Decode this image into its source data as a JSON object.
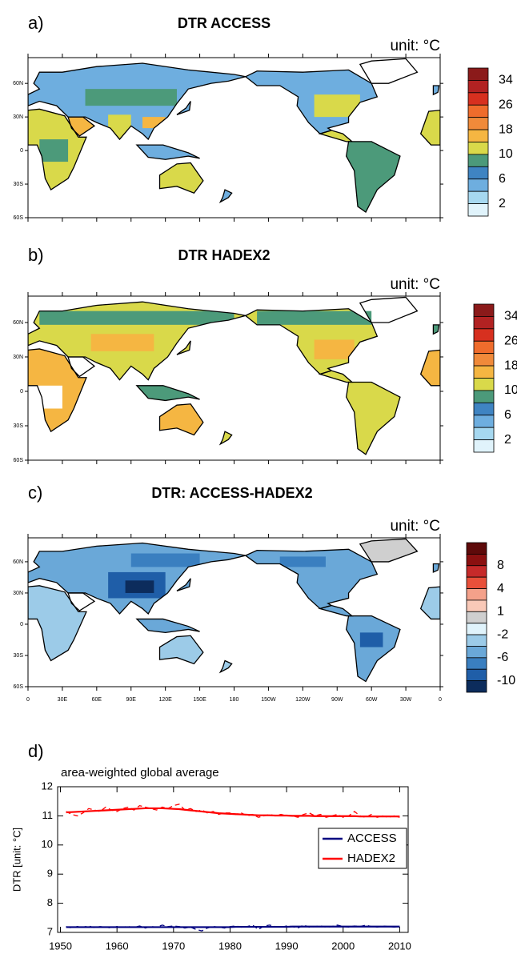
{
  "chart_data": [
    {
      "type": "map",
      "label": "a)",
      "title": "DTR ACCESS",
      "unit": "unit: °C",
      "lat_labels": [
        "60N",
        "30N",
        "0",
        "30S",
        "60S"
      ],
      "colorbar": {
        "colors": [
          "#8b1a1a",
          "#b22222",
          "#d7301f",
          "#ef6c2c",
          "#f08a3a",
          "#f5b642",
          "#d9d94a",
          "#4c9a7a",
          "#3f84c2",
          "#6eaedf",
          "#a6d8f0",
          "#e0f3fb"
        ],
        "labels": [
          34,
          26,
          18,
          10,
          6,
          2
        ]
      }
    },
    {
      "type": "map",
      "label": "b)",
      "title": "DTR HADEX2",
      "unit": "unit: °C",
      "lat_labels": [
        "60N",
        "30N",
        "0",
        "30S",
        "60S"
      ],
      "colorbar": {
        "colors": [
          "#8b1a1a",
          "#b22222",
          "#d7301f",
          "#ef6c2c",
          "#f08a3a",
          "#f5b642",
          "#d9d94a",
          "#4c9a7a",
          "#3f84c2",
          "#6eaedf",
          "#a6d8f0",
          "#e0f3fb"
        ],
        "labels": [
          34,
          26,
          18,
          10,
          6,
          2
        ]
      }
    },
    {
      "type": "map",
      "label": "c)",
      "title": "DTR: ACCESS-HADEX2",
      "unit": "unit: °C",
      "lat_labels": [
        "60N",
        "30N",
        "0",
        "30S",
        "60S"
      ],
      "lon_labels": [
        "0",
        "30E",
        "60E",
        "90E",
        "120E",
        "150E",
        "180",
        "150W",
        "120W",
        "90W",
        "60W",
        "30W",
        "0"
      ],
      "colorbar": {
        "colors": [
          "#5e0a0a",
          "#8b1010",
          "#c62a2a",
          "#e8503a",
          "#f4a18a",
          "#f9c9b8",
          "#cfcfcf",
          "#e0f3fb",
          "#9ccbe8",
          "#6aa8d8",
          "#3a7fc0",
          "#1f5ea8",
          "#0c2c5c"
        ],
        "labels": [
          8,
          4,
          1,
          -2,
          -6,
          -10
        ]
      }
    },
    {
      "type": "line",
      "label": "d)",
      "subtitle": "area-weighted global average",
      "ylabel": "DTR [unit: °C]",
      "x": [
        1951,
        1952,
        1953,
        1954,
        1955,
        1956,
        1957,
        1958,
        1959,
        1960,
        1961,
        1962,
        1963,
        1964,
        1965,
        1966,
        1967,
        1968,
        1969,
        1970,
        1971,
        1972,
        1973,
        1974,
        1975,
        1976,
        1977,
        1978,
        1979,
        1980,
        1981,
        1982,
        1983,
        1984,
        1985,
        1986,
        1987,
        1988,
        1989,
        1990,
        1991,
        1992,
        1993,
        1994,
        1995,
        1996,
        1997,
        1998,
        1999,
        2000,
        2001,
        2002,
        2003,
        2004,
        2005,
        2006,
        2007,
        2008,
        2009,
        2010
      ],
      "xlim": [
        1949.5,
        2011.5
      ],
      "xticks": [
        1950,
        1960,
        1970,
        1980,
        1990,
        2000,
        2010
      ],
      "ylim": [
        7,
        12
      ],
      "yticks": [
        7,
        8,
        9,
        10,
        11,
        12
      ],
      "legend": "upper right",
      "series": [
        {
          "name": "ACCESS",
          "color": "#000080",
          "values": [
            7.2,
            7.15,
            7.2,
            7.18,
            7.22,
            7.16,
            7.2,
            7.18,
            7.15,
            7.2,
            7.18,
            7.2,
            7.17,
            7.22,
            7.15,
            7.2,
            7.18,
            7.25,
            7.2,
            7.22,
            7.2,
            7.15,
            7.18,
            7.1,
            7.05,
            7.15,
            7.2,
            7.18,
            7.15,
            7.2,
            7.22,
            7.18,
            7.2,
            7.25,
            7.1,
            7.22,
            7.25,
            7.2,
            7.18,
            7.22,
            7.2,
            7.15,
            7.25,
            7.18,
            7.2,
            7.22,
            7.18,
            7.2,
            7.25,
            7.2,
            7.18,
            7.22,
            7.2,
            7.25,
            7.2,
            7.18,
            7.22,
            7.2,
            7.18,
            7.2
          ],
          "smoothed": [
            7.18,
            7.18,
            7.18,
            7.18,
            7.18,
            7.18,
            7.18,
            7.18,
            7.18,
            7.18,
            7.18,
            7.18,
            7.18,
            7.18,
            7.18,
            7.18,
            7.18,
            7.18,
            7.18,
            7.18,
            7.18,
            7.18,
            7.18,
            7.18,
            7.18,
            7.18,
            7.18,
            7.18,
            7.18,
            7.18,
            7.19,
            7.19,
            7.19,
            7.19,
            7.19,
            7.19,
            7.19,
            7.19,
            7.19,
            7.19,
            7.2,
            7.2,
            7.2,
            7.2,
            7.2,
            7.2,
            7.2,
            7.2,
            7.2,
            7.2,
            7.2,
            7.2,
            7.2,
            7.2,
            7.2,
            7.2,
            7.2,
            7.2,
            7.2,
            7.2
          ]
        },
        {
          "name": "HADEX2",
          "color": "#ff0000",
          "values": [
            11.15,
            11.05,
            11.0,
            11.1,
            11.25,
            11.2,
            11.15,
            11.3,
            11.2,
            11.15,
            11.25,
            11.3,
            11.2,
            11.35,
            11.3,
            11.25,
            11.2,
            11.3,
            11.25,
            11.35,
            11.4,
            11.2,
            11.25,
            11.15,
            11.2,
            11.1,
            11.15,
            11.05,
            11.1,
            11.1,
            11.05,
            11.1,
            11.0,
            11.05,
            10.95,
            11.0,
            11.05,
            11.0,
            11.05,
            11.0,
            11.0,
            10.95,
            11.05,
            11.1,
            11.0,
            11.05,
            10.95,
            11.0,
            11.05,
            10.95,
            11.0,
            11.15,
            11.0,
            10.95,
            11.05,
            10.95,
            11.0,
            10.95,
            11.0,
            10.95
          ],
          "smoothed": [
            11.12,
            11.13,
            11.14,
            11.15,
            11.16,
            11.17,
            11.18,
            11.19,
            11.2,
            11.21,
            11.22,
            11.23,
            11.24,
            11.25,
            11.26,
            11.26,
            11.26,
            11.26,
            11.25,
            11.24,
            11.23,
            11.21,
            11.19,
            11.17,
            11.15,
            11.13,
            11.11,
            11.09,
            11.08,
            11.07,
            11.06,
            11.05,
            11.04,
            11.03,
            11.02,
            11.02,
            11.02,
            11.01,
            11.01,
            11.01,
            11.0,
            11.0,
            11.0,
            11.0,
            10.99,
            10.99,
            10.99,
            10.99,
            10.99,
            10.99,
            10.99,
            10.99,
            10.98,
            10.98,
            10.98,
            10.98,
            10.98,
            10.98,
            10.98,
            10.98
          ]
        }
      ]
    }
  ]
}
